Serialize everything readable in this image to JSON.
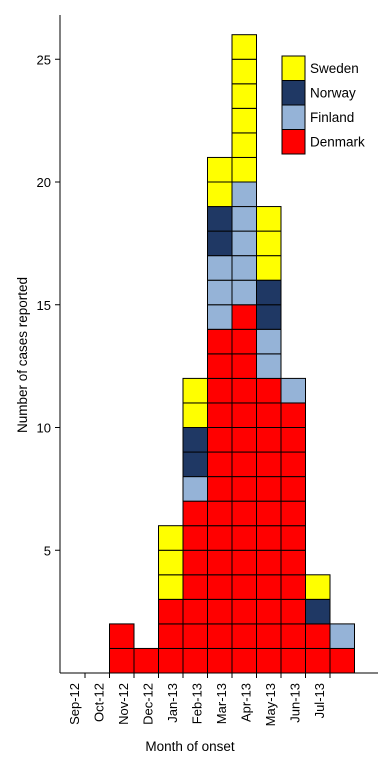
{
  "chart_data": {
    "type": "bar",
    "stacked": true,
    "style": "epicurve-unit-boxes",
    "categories": [
      "Sep-12",
      "Oct-12",
      "Nov-12",
      "Dec-12",
      "Jan-13",
      "Feb-13",
      "Mar-13",
      "Apr-13",
      "May-13",
      "Jun-13",
      "Jul-13"
    ],
    "series": [
      {
        "name": "Denmark",
        "color": "#ff0000",
        "values": [
          0,
          2,
          1,
          3,
          7,
          14,
          15,
          12,
          11,
          2,
          1
        ]
      },
      {
        "name": "Finland",
        "color": "#95b3d7",
        "values": [
          0,
          0,
          0,
          0,
          1,
          3,
          5,
          2,
          1,
          0,
          1
        ]
      },
      {
        "name": "Norway",
        "color": "#1f3864",
        "values": [
          0,
          0,
          0,
          0,
          2,
          2,
          0,
          2,
          0,
          1,
          0
        ]
      },
      {
        "name": "Sweden",
        "color": "#ffff00",
        "values": [
          0,
          0,
          0,
          3,
          2,
          2,
          6,
          3,
          0,
          1,
          0
        ]
      }
    ],
    "legend_order": [
      "Sweden",
      "Norway",
      "Finland",
      "Denmark"
    ],
    "legend_position": "top-right",
    "xlabel": "Month of onset",
    "ylabel": "Number of cases reported",
    "ylim": [
      0,
      27
    ],
    "yticks": [
      5,
      10,
      15,
      20,
      25
    ],
    "grid": false
  }
}
